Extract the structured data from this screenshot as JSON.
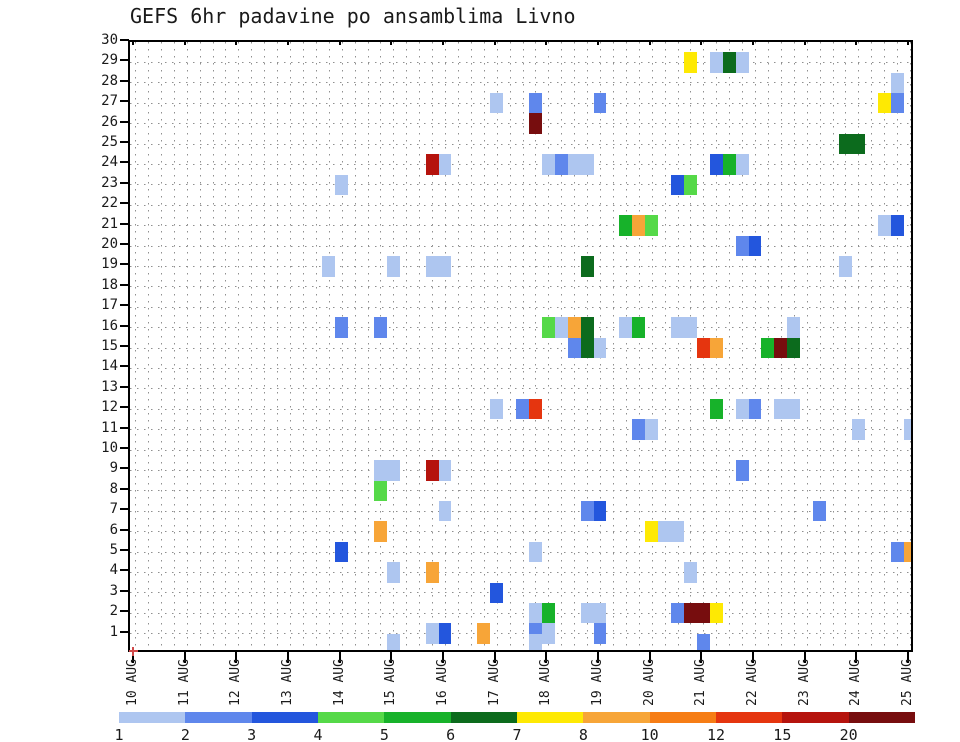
{
  "title": "GEFS 6hr padavine po ansamblima Livno",
  "chart_data": {
    "type": "heatmap",
    "title": "GEFS 6hr padavine po ansamblima Livno",
    "x_axis": {
      "labels": [
        "10 AUG",
        "11 AUG",
        "12 AUG",
        "13 AUG",
        "14 AUG",
        "15 AUG",
        "16 AUG",
        "17 AUG",
        "18 AUG",
        "19 AUG",
        "20 AUG",
        "21 AUG",
        "22 AUG",
        "23 AUG",
        "24 AUG",
        "25 AUG"
      ],
      "slots_per_day": 4,
      "slot_hours": 6
    },
    "y_axis": {
      "labels": [
        "1",
        "2",
        "3",
        "4",
        "5",
        "6",
        "7",
        "8",
        "9",
        "10",
        "11",
        "12",
        "13",
        "14",
        "15",
        "16",
        "17",
        "18",
        "19",
        "20",
        "21",
        "22",
        "23",
        "24",
        "25",
        "26",
        "27",
        "28",
        "29",
        "30"
      ],
      "min": 1,
      "max": 30
    },
    "legend": {
      "position": "bottom",
      "labels": [
        "1",
        "2",
        "3",
        "4",
        "5",
        "6",
        "7",
        "8",
        "10",
        "12",
        "15",
        "20"
      ],
      "values": [
        1,
        2,
        3,
        4,
        5,
        6,
        7,
        8,
        10,
        12,
        15,
        20
      ],
      "colors": [
        "#aec6f0",
        "#5f87ec",
        "#2356dd",
        "#55d948",
        "#17b22a",
        "#0c6b1d",
        "#fee903",
        "#f7a538",
        "#f67d15",
        "#e5350f",
        "#b5130d",
        "#770d0e"
      ]
    },
    "cell_format": [
      "day_of_aug",
      "slot_6hr_index",
      "ensemble_member",
      "category_value_mm"
    ],
    "cells": [
      [
        20,
        3,
        29,
        7
      ],
      [
        21,
        1,
        29,
        1
      ],
      [
        21,
        2,
        29,
        6
      ],
      [
        21,
        3,
        29,
        1
      ],
      [
        24,
        3,
        28,
        1
      ],
      [
        17,
        0,
        27,
        1
      ],
      [
        17,
        3,
        27,
        2
      ],
      [
        19,
        0,
        27,
        2
      ],
      [
        24,
        2,
        27,
        7
      ],
      [
        24,
        3,
        27,
        2
      ],
      [
        17,
        3,
        26,
        20
      ],
      [
        23,
        3,
        25,
        6
      ],
      [
        24,
        0,
        25,
        6
      ],
      [
        15,
        3,
        24,
        15
      ],
      [
        16,
        0,
        24,
        1
      ],
      [
        18,
        0,
        24,
        1
      ],
      [
        18,
        1,
        24,
        2
      ],
      [
        18,
        2,
        24,
        1
      ],
      [
        18,
        3,
        24,
        1
      ],
      [
        21,
        1,
        24,
        3
      ],
      [
        21,
        2,
        24,
        5
      ],
      [
        21,
        3,
        24,
        1
      ],
      [
        14,
        0,
        23,
        1
      ],
      [
        20,
        2,
        23,
        3
      ],
      [
        20,
        3,
        23,
        4
      ],
      [
        19,
        2,
        21,
        5
      ],
      [
        19,
        3,
        21,
        8
      ],
      [
        20,
        0,
        21,
        4
      ],
      [
        24,
        2,
        21,
        1
      ],
      [
        24,
        3,
        21,
        3
      ],
      [
        21,
        3,
        20,
        2
      ],
      [
        22,
        0,
        20,
        3
      ],
      [
        13,
        3,
        19,
        1
      ],
      [
        15,
        0,
        19,
        1
      ],
      [
        15,
        3,
        19,
        1
      ],
      [
        16,
        0,
        19,
        1
      ],
      [
        18,
        3,
        19,
        6
      ],
      [
        23,
        3,
        19,
        1
      ],
      [
        14,
        0,
        16,
        2
      ],
      [
        14,
        3,
        16,
        2
      ],
      [
        18,
        0,
        16,
        4
      ],
      [
        18,
        1,
        16,
        1
      ],
      [
        18,
        2,
        16,
        8
      ],
      [
        18,
        3,
        16,
        6
      ],
      [
        19,
        2,
        16,
        1
      ],
      [
        19,
        3,
        16,
        5
      ],
      [
        20,
        2,
        16,
        1
      ],
      [
        20,
        3,
        16,
        1
      ],
      [
        22,
        3,
        16,
        1
      ],
      [
        18,
        2,
        15,
        2
      ],
      [
        18,
        3,
        15,
        6
      ],
      [
        19,
        0,
        15,
        1
      ],
      [
        21,
        0,
        15,
        12
      ],
      [
        21,
        1,
        15,
        8
      ],
      [
        22,
        1,
        15,
        5
      ],
      [
        22,
        2,
        15,
        20
      ],
      [
        22,
        3,
        15,
        6
      ],
      [
        17,
        0,
        12,
        1
      ],
      [
        17,
        2,
        12,
        2
      ],
      [
        17,
        3,
        12,
        12
      ],
      [
        21,
        1,
        12,
        5
      ],
      [
        21,
        3,
        12,
        1
      ],
      [
        22,
        0,
        12,
        2
      ],
      [
        22,
        2,
        12,
        1
      ],
      [
        22,
        3,
        12,
        1
      ],
      [
        19,
        3,
        11,
        2
      ],
      [
        20,
        0,
        11,
        1
      ],
      [
        24,
        0,
        11,
        1
      ],
      [
        25,
        0,
        11,
        1
      ],
      [
        14,
        3,
        9,
        1
      ],
      [
        15,
        0,
        9,
        1
      ],
      [
        15,
        3,
        9,
        15
      ],
      [
        16,
        0,
        9,
        1
      ],
      [
        21,
        3,
        9,
        2
      ],
      [
        14,
        3,
        8,
        4
      ],
      [
        16,
        0,
        7,
        1
      ],
      [
        18,
        3,
        7,
        2
      ],
      [
        19,
        0,
        7,
        3
      ],
      [
        23,
        1,
        7,
        2
      ],
      [
        14,
        3,
        6,
        8
      ],
      [
        20,
        0,
        6,
        7
      ],
      [
        20,
        1,
        6,
        1
      ],
      [
        20,
        2,
        6,
        1
      ],
      [
        14,
        0,
        5,
        3
      ],
      [
        17,
        3,
        5,
        1
      ],
      [
        24,
        3,
        5,
        2
      ],
      [
        25,
        0,
        5,
        8
      ],
      [
        15,
        0,
        4,
        1
      ],
      [
        15,
        3,
        4,
        8
      ],
      [
        20,
        3,
        4,
        1
      ],
      [
        17,
        0,
        3,
        3
      ],
      [
        17,
        3,
        2,
        1
      ],
      [
        18,
        0,
        2,
        5
      ],
      [
        18,
        3,
        2,
        1
      ],
      [
        19,
        0,
        2,
        1
      ],
      [
        20,
        2,
        2,
        2
      ],
      [
        20,
        3,
        2,
        20
      ],
      [
        21,
        0,
        2,
        20
      ],
      [
        21,
        1,
        2,
        7
      ],
      [
        15,
        3,
        1,
        1
      ],
      [
        16,
        0,
        1,
        3
      ],
      [
        16,
        3,
        1,
        8
      ],
      [
        17,
        3,
        1,
        2
      ],
      [
        18,
        0,
        1,
        1
      ],
      [
        19,
        0,
        1,
        2
      ],
      [
        15,
        0,
        0.5,
        1
      ],
      [
        17,
        3,
        0.5,
        1
      ],
      [
        21,
        0,
        0.5,
        2
      ]
    ],
    "grid": "dotted",
    "notes": "GEFS ensemble members 1-30 vs 6-hourly periods 10-25 AUG; cell color = 6hr precipitation category (mm)"
  }
}
